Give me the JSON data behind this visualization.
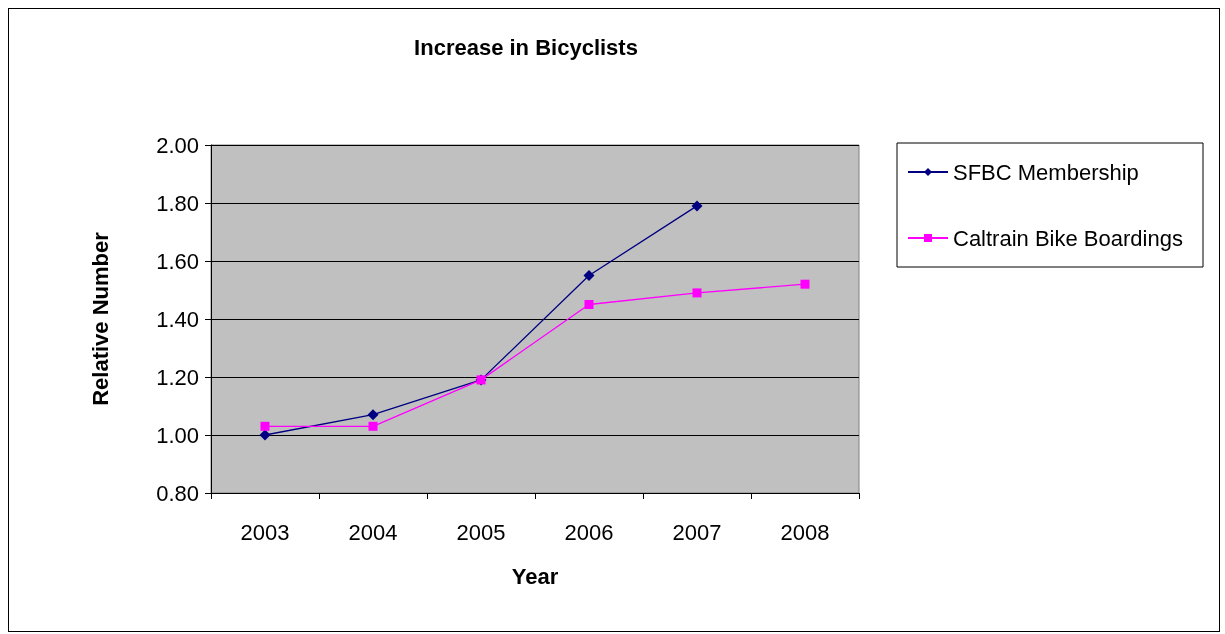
{
  "chart_data": {
    "type": "line",
    "title": "Increase in Bicyclists",
    "xlabel": "Year",
    "ylabel": "Relative Number",
    "categories": [
      "2003",
      "2004",
      "2005",
      "2006",
      "2007",
      "2008"
    ],
    "series": [
      {
        "name": "SFBC Membership",
        "color": "#000080",
        "marker": "diamond",
        "values": [
          1.0,
          1.07,
          1.19,
          1.55,
          1.79,
          null
        ]
      },
      {
        "name": "Caltrain Bike Boardings",
        "color": "#ff00ff",
        "marker": "square",
        "values": [
          1.03,
          1.03,
          1.19,
          1.45,
          1.49,
          1.52
        ]
      }
    ],
    "ylim": [
      0.8,
      2.0
    ],
    "yticks": [
      {
        "value": 0.8,
        "label": "0.80"
      },
      {
        "value": 1.0,
        "label": "1.00"
      },
      {
        "value": 1.2,
        "label": "1.20"
      },
      {
        "value": 1.4,
        "label": "1.40"
      },
      {
        "value": 1.6,
        "label": "1.60"
      },
      {
        "value": 1.8,
        "label": "1.80"
      },
      {
        "value": 2.0,
        "label": "2.00"
      }
    ],
    "grid": "y",
    "legend": "right"
  }
}
